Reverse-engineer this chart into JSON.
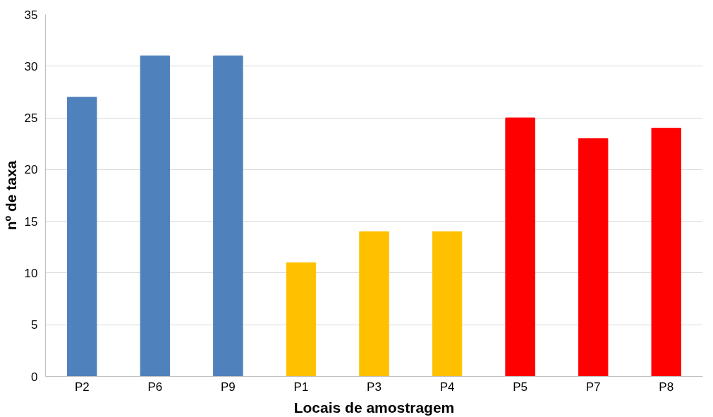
{
  "chart_data": {
    "type": "bar",
    "xlabel": "Locais de amostragem",
    "ylabel": "nº de taxa",
    "categories": [
      "P2",
      "P6",
      "P9",
      "P1",
      "P3",
      "P4",
      "P5",
      "P7",
      "P8"
    ],
    "values": [
      27,
      31,
      31,
      11,
      14,
      14,
      25,
      23,
      24
    ],
    "colors": [
      "#4f81bd",
      "#4f81bd",
      "#4f81bd",
      "#ffc000",
      "#ffc000",
      "#ffc000",
      "#ff0000",
      "#ff0000",
      "#ff0000"
    ],
    "ylim": [
      0,
      35
    ],
    "yticks": [
      0,
      5,
      10,
      15,
      20,
      25,
      30,
      35
    ],
    "grid": "y"
  }
}
